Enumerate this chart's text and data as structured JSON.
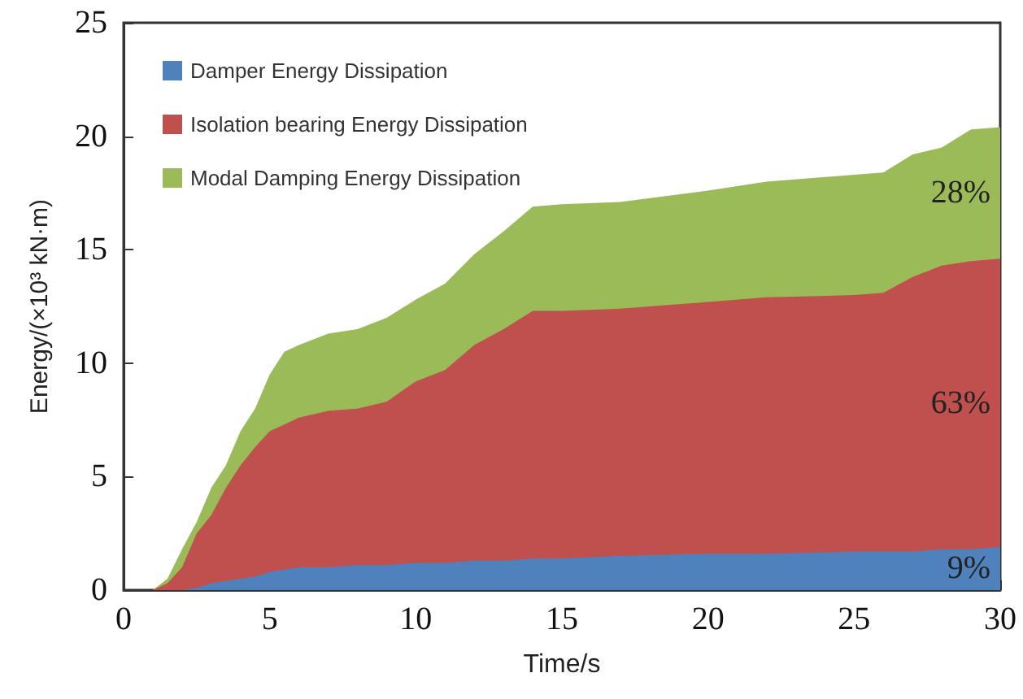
{
  "chart_data": {
    "type": "area",
    "stacked": true,
    "xlabel": "Time/s",
    "ylabel": "Energy/(×10³ kN·m)",
    "x": [
      0,
      1,
      1.5,
      2,
      2.5,
      3,
      3.5,
      4,
      4.5,
      5,
      5.5,
      6,
      7,
      8,
      9,
      10,
      11,
      12,
      13,
      14,
      15,
      17,
      20,
      22,
      25,
      26,
      27,
      28,
      29,
      30
    ],
    "series": [
      {
        "name": "Damper Energy Dissipation",
        "color": "#4f81bd",
        "values": [
          0,
          0,
          0,
          0,
          0.1,
          0.3,
          0.4,
          0.5,
          0.6,
          0.8,
          0.9,
          1.0,
          1.0,
          1.1,
          1.1,
          1.2,
          1.2,
          1.3,
          1.3,
          1.4,
          1.4,
          1.5,
          1.6,
          1.6,
          1.7,
          1.7,
          1.7,
          1.8,
          1.8,
          1.9
        ]
      },
      {
        "name": "Isolation bearing Energy Dissipation",
        "color": "#c0504d",
        "values": [
          0,
          0,
          0.3,
          1.0,
          2.4,
          3.0,
          4.1,
          5.0,
          5.7,
          6.2,
          6.4,
          6.6,
          6.9,
          6.9,
          7.2,
          8.0,
          8.5,
          9.5,
          10.2,
          10.9,
          10.9,
          10.9,
          11.1,
          11.3,
          11.3,
          11.4,
          12.1,
          12.5,
          12.7,
          12.7
        ]
      },
      {
        "name": "Modal Damping Energy Dissipation",
        "color": "#9bbb59",
        "values": [
          0,
          0,
          0.2,
          0.8,
          0.5,
          1.2,
          1.0,
          1.5,
          1.7,
          2.5,
          3.2,
          3.2,
          3.4,
          3.5,
          3.7,
          3.6,
          3.8,
          4.0,
          4.3,
          4.6,
          4.7,
          4.7,
          4.9,
          5.1,
          5.3,
          5.3,
          5.4,
          5.2,
          5.8,
          5.8
        ]
      }
    ],
    "xlim": [
      0,
      30
    ],
    "xticks": [
      0,
      5,
      10,
      15,
      20,
      25,
      30
    ],
    "ylim": [
      0,
      25
    ],
    "yticks": [
      0,
      5,
      10,
      15,
      20,
      25
    ],
    "grid": false,
    "legend": "top left",
    "marker": "none",
    "annotations": [
      "9%",
      "63%",
      "28%"
    ]
  }
}
